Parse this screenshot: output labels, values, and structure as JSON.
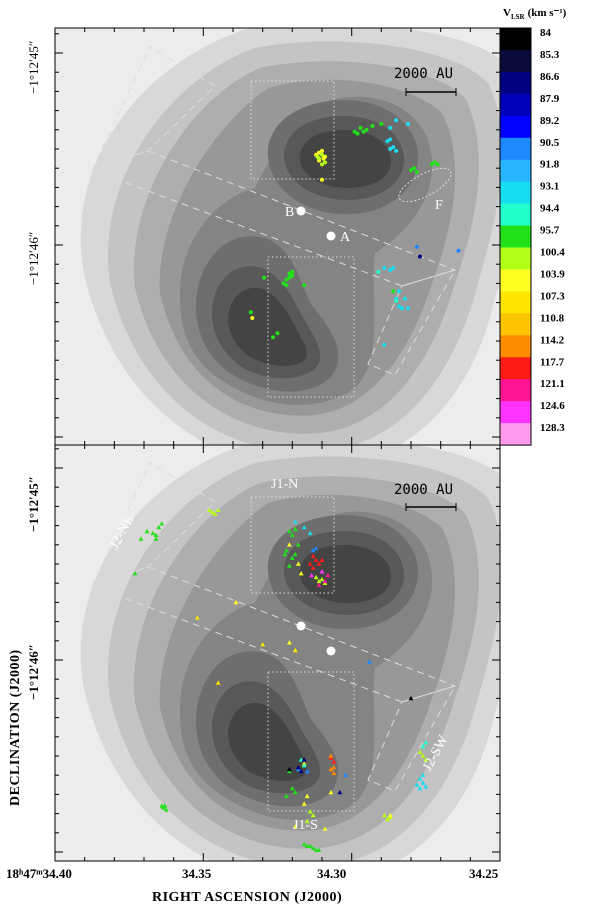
{
  "chart_data": {
    "type": "scatter",
    "figure_kind": "two-panel sky map: grayscale continuum contours with color-coded maser velocities",
    "colorbar": {
      "title_main": "V",
      "title_sub": "LSR",
      "title_units": "(km s⁻¹)",
      "levels": [
        {
          "value": "84",
          "color": "#000000"
        },
        {
          "value": "85.3",
          "color": "#0a0a3a"
        },
        {
          "value": "86.6",
          "color": "#000080"
        },
        {
          "value": "87.9",
          "color": "#0000b8"
        },
        {
          "value": "89.2",
          "color": "#0000ff"
        },
        {
          "value": "90.5",
          "color": "#1e88ff"
        },
        {
          "value": "91.8",
          "color": "#28b4ff"
        },
        {
          "value": "93.1",
          "color": "#18ddf0"
        },
        {
          "value": "94.4",
          "color": "#20ffcc"
        },
        {
          "value": "95.7",
          "color": "#22e01a"
        },
        {
          "value": "100.4",
          "color": "#b4ff18"
        },
        {
          "value": "103.9",
          "color": "#ffff22"
        },
        {
          "value": "107.3",
          "color": "#ffe600"
        },
        {
          "value": "110.8",
          "color": "#ffc400"
        },
        {
          "value": "114.2",
          "color": "#ff8c00"
        },
        {
          "value": "117.7",
          "color": "#ff1a1a"
        },
        {
          "value": "121.1",
          "color": "#ff1493"
        },
        {
          "value": "124.6",
          "color": "#ff33ff"
        },
        {
          "value": "128.3",
          "color": "#ff9aee"
        }
      ]
    },
    "x_axis": {
      "label": "RIGHT ASCENSION (J2000)",
      "ticks": [
        "18ʰ47ᵐ34.40",
        "34.35",
        "34.30",
        "34.25"
      ]
    },
    "y_axis": {
      "label": "DECLINATION (J2000)",
      "top_panel_ticks": [
        "−1°12′45″",
        "−1°12′46″"
      ],
      "bottom_panel_ticks": [
        "−1°12′45″",
        "−1°12′46″"
      ]
    },
    "scale_bar": "2000 AU",
    "top_panel": {
      "point_labels": {
        "A": "A",
        "B": "B",
        "F": "F"
      },
      "series": [
        {
          "name": "yellow",
          "color": "#ffff22",
          "points": [
            [
              34.311,
              45.52
            ],
            [
              34.31,
              45.51
            ],
            [
              34.309,
              45.54
            ],
            [
              34.311,
              45.56
            ],
            [
              34.3095,
              45.55
            ],
            [
              34.312,
              45.53
            ]
          ]
        },
        {
          "name": "yellow-green",
          "color": "#b4ff18",
          "points": [
            [
              34.31,
              45.58
            ],
            [
              34.309,
              45.57
            ],
            [
              34.311,
              45.55
            ],
            [
              34.3115,
              45.54
            ],
            [
              34.31,
              45.53
            ]
          ]
        },
        {
          "name": "green",
          "color": "#22e01a",
          "points": [
            [
              34.299,
              45.41
            ],
            [
              34.298,
              45.42
            ],
            [
              34.297,
              45.39
            ],
            [
              34.295,
              45.4
            ],
            [
              34.293,
              45.38
            ],
            [
              34.29,
              45.37
            ],
            [
              34.296,
              45.41
            ],
            [
              34.321,
              46.15
            ],
            [
              34.321,
              46.17
            ],
            [
              34.322,
              46.18
            ],
            [
              34.32,
              46.14
            ],
            [
              34.32,
              46.16
            ],
            [
              34.323,
              46.2
            ],
            [
              34.322,
              46.21
            ],
            [
              34.28,
              45.61
            ],
            [
              34.279,
              45.6
            ],
            [
              34.278,
              45.62
            ],
            [
              34.273,
              45.58
            ],
            [
              34.272,
              45.57
            ],
            [
              34.271,
              45.58
            ],
            [
              34.286,
              46.24
            ],
            [
              34.334,
              46.35
            ]
          ]
        },
        {
          "name": "cyan",
          "color": "#18ddf0",
          "points": [
            [
              34.288,
              45.46
            ],
            [
              34.287,
              45.45
            ],
            [
              34.286,
              45.49
            ],
            [
              34.287,
              45.5
            ],
            [
              34.285,
              45.51
            ],
            [
              34.289,
              46.12
            ],
            [
              34.287,
              46.13
            ],
            [
              34.286,
              46.12
            ],
            [
              34.284,
              46.24
            ],
            [
              34.282,
              46.28
            ],
            [
              34.284,
              46.32
            ],
            [
              34.283,
              46.33
            ],
            [
              34.281,
              46.33
            ],
            [
              34.285,
              46.28
            ],
            [
              34.289,
              46.52
            ],
            [
              34.281,
              45.37
            ],
            [
              34.285,
              45.35
            ],
            [
              34.287,
              45.39
            ]
          ]
        },
        {
          "name": "aqua-light",
          "color": "#20ffcc",
          "points": [
            [
              34.291,
              46.14
            ],
            [
              34.285,
              46.29
            ]
          ]
        },
        {
          "name": "blue",
          "color": "#1e88ff",
          "points": [
            [
              34.278,
              46.01
            ],
            [
              34.264,
              46.03
            ]
          ]
        },
        {
          "name": "navy",
          "color": "#000080",
          "points": [
            [
              34.277,
              46.06
            ]
          ]
        },
        {
          "name": "yellow-sparse",
          "color": "#ffff22",
          "points": [
            [
              34.31,
              45.66
            ],
            [
              34.3335,
              46.38
            ]
          ]
        },
        {
          "name": "green-sparse",
          "color": "#22e01a",
          "points": [
            [
              34.3265,
              46.48
            ],
            [
              34.325,
              46.46
            ],
            [
              34.316,
              46.21
            ],
            [
              34.3295,
              46.17
            ]
          ]
        }
      ]
    },
    "bottom_panel": {
      "region_labels": {
        "j1n": "J1-N",
        "j1s": "J1-S",
        "j2ne": "J2-NE",
        "j2sw": "J2-SW"
      },
      "series": [
        {
          "name": "green",
          "color": "#22e01a",
          "points": [
            [
              34.367,
              45.34
            ],
            [
              34.366,
              45.35
            ],
            [
              34.366,
              45.37
            ],
            [
              34.365,
              45.31
            ],
            [
              34.364,
              45.29
            ],
            [
              34.364,
              46.76
            ],
            [
              34.363,
              46.76
            ],
            [
              34.3625,
              46.78
            ],
            [
              34.3635,
              46.77
            ],
            [
              34.321,
              45.33
            ],
            [
              34.32,
              45.35
            ],
            [
              34.319,
              45.32
            ],
            [
              34.318,
              45.4
            ],
            [
              34.319,
              45.45
            ],
            [
              34.32,
              45.47
            ],
            [
              34.321,
              45.51
            ],
            [
              34.322,
              45.43
            ],
            [
              34.3225,
              45.45
            ],
            [
              34.321,
              46.58
            ],
            [
              34.32,
              46.67
            ],
            [
              34.319,
              46.69
            ],
            [
              34.322,
              46.71
            ],
            [
              34.316,
              46.96
            ],
            [
              34.315,
              46.97
            ],
            [
              34.314,
              46.97
            ],
            [
              34.313,
              46.98
            ],
            [
              34.312,
              46.99
            ],
            [
              34.311,
              46.99
            ],
            [
              34.373,
              45.55
            ],
            [
              34.371,
              45.37
            ],
            [
              34.369,
              45.33
            ]
          ]
        },
        {
          "name": "yellow-green",
          "color": "#b4ff18",
          "points": [
            [
              34.348,
              45.22
            ],
            [
              34.347,
              45.23
            ],
            [
              34.346,
              45.24
            ],
            [
              34.345,
              45.22
            ],
            [
              34.31,
              45.58
            ],
            [
              34.309,
              45.6
            ],
            [
              34.311,
              45.59
            ],
            [
              34.312,
              45.57
            ],
            [
              34.287,
              46.82
            ],
            [
              34.288,
              46.83
            ],
            [
              34.289,
              46.81
            ],
            [
              34.277,
              46.48
            ],
            [
              34.276,
              46.5
            ],
            [
              34.275,
              46.52
            ],
            [
              34.314,
              46.79
            ],
            [
              34.313,
              46.81
            ],
            [
              34.315,
              46.84
            ]
          ]
        },
        {
          "name": "yellow",
          "color": "#ffff22",
          "points": [
            [
              34.321,
              45.4
            ],
            [
              34.318,
              45.5
            ],
            [
              34.317,
              45.55
            ],
            [
              34.316,
              46.75
            ],
            [
              34.315,
              46.71
            ],
            [
              34.319,
              46.87
            ],
            [
              34.309,
              46.88
            ],
            [
              34.307,
              46.69
            ],
            [
              34.321,
              45.91
            ],
            [
              34.316,
              46.54
            ],
            [
              34.339,
              45.7
            ],
            [
              34.287,
              46.81
            ]
          ]
        },
        {
          "name": "cyan",
          "color": "#18ddf0",
          "points": [
            [
              34.319,
              45.28
            ],
            [
              34.316,
              45.31
            ],
            [
              34.314,
              45.34
            ],
            [
              34.277,
              46.62
            ],
            [
              34.276,
              46.64
            ],
            [
              34.275,
              46.66
            ],
            [
              34.277,
              46.67
            ],
            [
              34.278,
              46.65
            ],
            [
              34.276,
              46.6
            ]
          ]
        },
        {
          "name": "aqua-light",
          "color": "#20ffcc",
          "points": [
            [
              34.317,
              46.52
            ],
            [
              34.316,
              46.55
            ],
            [
              34.276,
              46.45
            ],
            [
              34.275,
              46.43
            ]
          ]
        },
        {
          "name": "red",
          "color": "#ff1a1a",
          "points": [
            [
              34.313,
              45.46
            ],
            [
              34.312,
              45.48
            ],
            [
              34.314,
              45.5
            ],
            [
              34.313,
              45.52
            ],
            [
              34.31,
              45.48
            ],
            [
              34.311,
              45.5
            ],
            [
              34.307,
              46.51
            ],
            [
              34.306,
              46.53
            ]
          ]
        },
        {
          "name": "magenta",
          "color": "#ff1493",
          "points": [
            [
              34.309,
              45.59
            ],
            [
              34.311,
              45.61
            ],
            [
              34.308,
              45.56
            ]
          ]
        },
        {
          "name": "violet",
          "color": "#ff33ff",
          "points": [
            [
              34.3135,
              45.56
            ],
            [
              34.31,
              45.54
            ]
          ]
        },
        {
          "name": "orange",
          "color": "#ff8c00",
          "points": [
            [
              34.307,
              46.5
            ],
            [
              34.306,
              46.56
            ],
            [
              34.307,
              46.57
            ],
            [
              34.306,
              46.59
            ]
          ]
        },
        {
          "name": "blue",
          "color": "#1e88ff",
          "points": [
            [
              34.318,
              46.57
            ],
            [
              34.315,
              46.58
            ],
            [
              34.302,
              46.6
            ],
            [
              34.312,
              45.42
            ],
            [
              34.313,
              45.43
            ],
            [
              34.294,
              46.01
            ]
          ]
        },
        {
          "name": "navy",
          "color": "#000080",
          "points": [
            [
              34.317,
              46.58
            ],
            [
              34.318,
              46.56
            ],
            [
              34.316,
              46.52
            ],
            [
              34.304,
              46.69
            ]
          ]
        },
        {
          "name": "black",
          "color": "#000000",
          "points": [
            [
              34.28,
              46.2
            ],
            [
              34.321,
              46.57
            ]
          ]
        },
        {
          "name": "sparse-yellow",
          "color": "#ffe600",
          "points": [
            [
              34.352,
              45.78
            ],
            [
              34.345,
              46.12
            ],
            [
              34.319,
              45.95
            ],
            [
              34.33,
              45.92
            ]
          ]
        }
      ]
    }
  }
}
